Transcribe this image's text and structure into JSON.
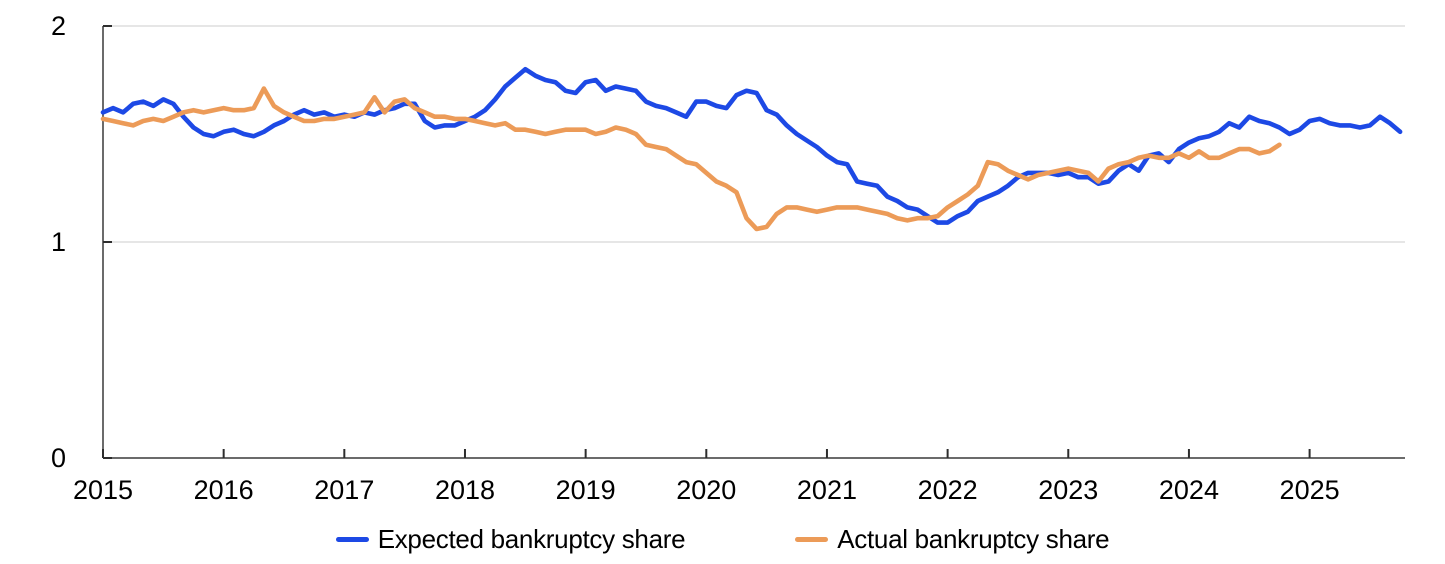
{
  "chart_data": {
    "type": "line",
    "title": "",
    "x_unit": "month",
    "x_start": "2015-01",
    "x_tick_years": [
      2015,
      2016,
      2017,
      2018,
      2019,
      2020,
      2021,
      2022,
      2023,
      2024,
      2025
    ],
    "ylim": [
      0,
      2
    ],
    "y_ticks": [
      0,
      1,
      2
    ],
    "grid_y_values": [
      1,
      2
    ],
    "grid_on": true,
    "legend_position": "bottom-center",
    "series": [
      {
        "name": "Expected bankruptcy share",
        "color": "#1d49e5",
        "start": "2015-01",
        "end": "2025-10",
        "values": [
          1.6,
          1.62,
          1.6,
          1.64,
          1.65,
          1.63,
          1.66,
          1.64,
          1.58,
          1.53,
          1.5,
          1.49,
          1.51,
          1.52,
          1.5,
          1.49,
          1.51,
          1.54,
          1.56,
          1.59,
          1.61,
          1.59,
          1.6,
          1.58,
          1.59,
          1.58,
          1.6,
          1.59,
          1.61,
          1.62,
          1.64,
          1.64,
          1.56,
          1.53,
          1.54,
          1.54,
          1.56,
          1.58,
          1.61,
          1.66,
          1.72,
          1.76,
          1.8,
          1.77,
          1.75,
          1.74,
          1.7,
          1.69,
          1.74,
          1.75,
          1.7,
          1.72,
          1.71,
          1.7,
          1.65,
          1.63,
          1.62,
          1.6,
          1.58,
          1.65,
          1.65,
          1.63,
          1.62,
          1.68,
          1.7,
          1.69,
          1.61,
          1.59,
          1.54,
          1.5,
          1.47,
          1.44,
          1.4,
          1.37,
          1.36,
          1.28,
          1.27,
          1.26,
          1.21,
          1.19,
          1.16,
          1.15,
          1.12,
          1.09,
          1.09,
          1.12,
          1.14,
          1.19,
          1.21,
          1.23,
          1.26,
          1.3,
          1.32,
          1.32,
          1.32,
          1.31,
          1.32,
          1.3,
          1.3,
          1.27,
          1.28,
          1.33,
          1.36,
          1.33,
          1.4,
          1.41,
          1.37,
          1.43,
          1.46,
          1.48,
          1.49,
          1.51,
          1.55,
          1.53,
          1.58,
          1.56,
          1.55,
          1.53,
          1.5,
          1.52,
          1.56,
          1.57,
          1.55,
          1.54,
          1.54,
          1.53,
          1.54,
          1.58,
          1.55,
          1.51
        ]
      },
      {
        "name": "Actual bankruptcy share",
        "color": "#ec9b58",
        "start": "2015-01",
        "end": "2024-10",
        "values": [
          1.57,
          1.56,
          1.55,
          1.54,
          1.56,
          1.57,
          1.56,
          1.58,
          1.6,
          1.61,
          1.6,
          1.61,
          1.62,
          1.61,
          1.61,
          1.62,
          1.71,
          1.63,
          1.6,
          1.58,
          1.56,
          1.56,
          1.57,
          1.57,
          1.58,
          1.59,
          1.6,
          1.67,
          1.6,
          1.65,
          1.66,
          1.62,
          1.6,
          1.58,
          1.58,
          1.57,
          1.57,
          1.56,
          1.55,
          1.54,
          1.55,
          1.52,
          1.52,
          1.51,
          1.5,
          1.51,
          1.52,
          1.52,
          1.52,
          1.5,
          1.51,
          1.53,
          1.52,
          1.5,
          1.45,
          1.44,
          1.43,
          1.4,
          1.37,
          1.36,
          1.32,
          1.28,
          1.26,
          1.23,
          1.11,
          1.06,
          1.07,
          1.13,
          1.16,
          1.16,
          1.15,
          1.14,
          1.15,
          1.16,
          1.16,
          1.16,
          1.15,
          1.14,
          1.13,
          1.11,
          1.1,
          1.11,
          1.11,
          1.12,
          1.16,
          1.19,
          1.22,
          1.26,
          1.37,
          1.36,
          1.33,
          1.31,
          1.29,
          1.31,
          1.32,
          1.33,
          1.34,
          1.33,
          1.32,
          1.28,
          1.34,
          1.36,
          1.37,
          1.39,
          1.4,
          1.39,
          1.39,
          1.41,
          1.39,
          1.42,
          1.39,
          1.39,
          1.41,
          1.43,
          1.43,
          1.41,
          1.42,
          1.45
        ]
      }
    ]
  },
  "axes": {
    "y_tick_labels": [
      "0",
      "1",
      "2"
    ],
    "x_tick_labels": [
      "2015",
      "2016",
      "2017",
      "2018",
      "2019",
      "2020",
      "2021",
      "2022",
      "2023",
      "2024",
      "2025"
    ]
  },
  "legend": {
    "items": [
      {
        "label": "Expected bankruptcy share",
        "color": "#1d49e5"
      },
      {
        "label": "Actual bankruptcy share",
        "color": "#ec9b58"
      }
    ]
  },
  "style_colors": {
    "axis_line": "#6b6b6b",
    "tick_mark": "#2e2e2e",
    "gridline": "#dedede",
    "tick_label": "#000000",
    "background": "#ffffff"
  }
}
